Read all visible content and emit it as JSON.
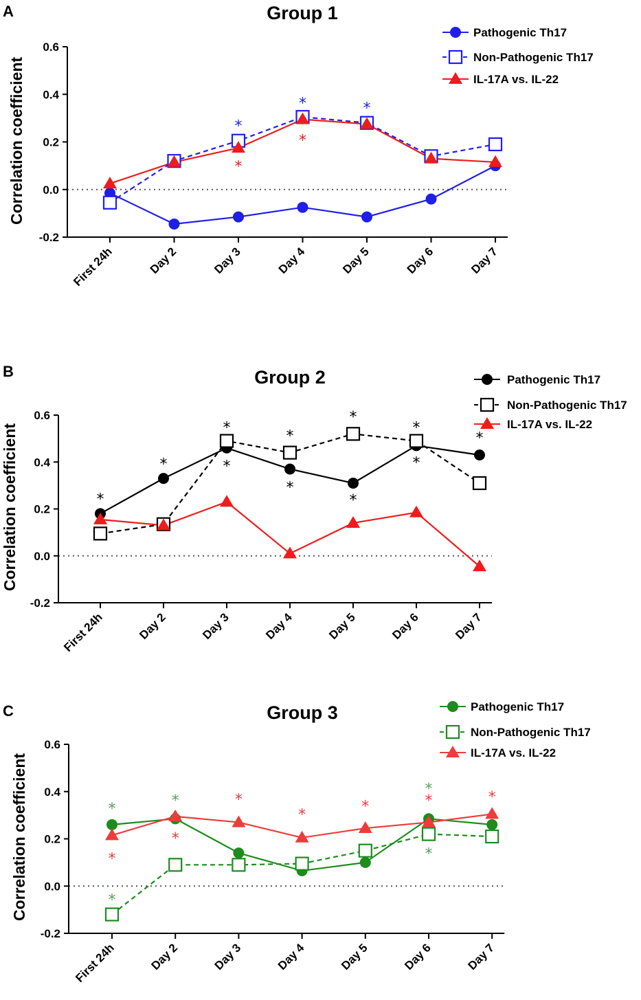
{
  "chart_data": [
    {
      "panel": "A",
      "type": "line",
      "title": "Group 1",
      "xlabel": "",
      "ylabel": "Correlation coefficient",
      "ylim": [
        -0.2,
        0.6
      ],
      "yticks": [
        "-0.2",
        "0.0",
        "0.2",
        "0.4",
        "0.6"
      ],
      "categories": [
        "First 24h",
        "Day 2",
        "Day 3",
        "Day 4",
        "Day 5",
        "Day 6",
        "Day 7"
      ],
      "reference_line": 0.0,
      "series": [
        {
          "name": "Pathogenic Th17",
          "color": "#1f1fe8",
          "marker": "circle-filled",
          "dash": false,
          "values": [
            -0.015,
            -0.145,
            -0.115,
            -0.075,
            -0.115,
            -0.04,
            0.1
          ]
        },
        {
          "name": "Non-Pathogenic Th17",
          "color": "#1f1fe8",
          "marker": "square-open",
          "dash": true,
          "values": [
            -0.055,
            0.12,
            0.205,
            0.305,
            0.28,
            0.14,
            0.19
          ]
        },
        {
          "name": "IL-17A vs. IL-22",
          "color": "#ee1c1c",
          "marker": "triangle-filled",
          "dash": false,
          "values": [
            0.025,
            0.115,
            0.175,
            0.295,
            0.275,
            0.13,
            0.115
          ]
        }
      ],
      "annotations": [
        {
          "text": "*",
          "category": "Day 3",
          "y": 0.275,
          "color": "#1f1fe8"
        },
        {
          "text": "*",
          "category": "Day 3",
          "y": 0.105,
          "color": "#ee1c1c"
        },
        {
          "text": "*",
          "category": "Day 4",
          "y": 0.37,
          "color": "#1f1fe8"
        },
        {
          "text": "*",
          "category": "Day 4",
          "y": 0.215,
          "color": "#ee1c1c"
        },
        {
          "text": "*",
          "category": "Day 5",
          "y": 0.35,
          "color": "#1f1fe8"
        }
      ]
    },
    {
      "panel": "B",
      "type": "line",
      "title": "Group 2",
      "xlabel": "",
      "ylabel": "Correlation coefficient",
      "ylim": [
        -0.2,
        0.6
      ],
      "yticks": [
        "-0.2",
        "0.0",
        "0.2",
        "0.4",
        "0.6"
      ],
      "categories": [
        "First 24h",
        "Day 2",
        "Day 3",
        "Day 4",
        "Day 5",
        "Day 6",
        "Day 7"
      ],
      "reference_line": 0.0,
      "series": [
        {
          "name": "Pathogenic Th17",
          "color": "#000000",
          "marker": "circle-filled",
          "dash": false,
          "values": [
            0.18,
            0.33,
            0.46,
            0.37,
            0.31,
            0.47,
            0.43
          ]
        },
        {
          "name": "Non-Pathogenic Th17",
          "color": "#000000",
          "marker": "square-open",
          "dash": true,
          "values": [
            0.095,
            0.135,
            0.49,
            0.44,
            0.52,
            0.49,
            0.31
          ]
        },
        {
          "name": "IL-17A vs. IL-22",
          "color": "#ee1c1c",
          "marker": "triangle-filled",
          "dash": false,
          "values": [
            0.155,
            0.13,
            0.23,
            0.01,
            0.14,
            0.185,
            -0.045
          ]
        }
      ],
      "annotations": [
        {
          "text": "*",
          "category": "First 24h",
          "y": 0.25,
          "color": "#000000"
        },
        {
          "text": "*",
          "category": "Day 2",
          "y": 0.4,
          "color": "#000000"
        },
        {
          "text": "*",
          "category": "Day 3",
          "y": 0.555,
          "color": "#000000"
        },
        {
          "text": "*",
          "category": "Day 3",
          "y": 0.39,
          "color": "#000000"
        },
        {
          "text": "*",
          "category": "Day 4",
          "y": 0.52,
          "color": "#000000"
        },
        {
          "text": "*",
          "category": "Day 4",
          "y": 0.3,
          "color": "#000000"
        },
        {
          "text": "*",
          "category": "Day 5",
          "y": 0.6,
          "color": "#000000"
        },
        {
          "text": "*",
          "category": "Day 5",
          "y": 0.245,
          "color": "#000000"
        },
        {
          "text": "*",
          "category": "Day 6",
          "y": 0.555,
          "color": "#000000"
        },
        {
          "text": "*",
          "category": "Day 6",
          "y": 0.405,
          "color": "#000000"
        },
        {
          "text": "*",
          "category": "Day 7",
          "y": 0.51,
          "color": "#000000"
        }
      ]
    },
    {
      "panel": "C",
      "type": "line",
      "title": "Group 3",
      "xlabel": "",
      "ylabel": "Correlation coefficient",
      "ylim": [
        -0.2,
        0.6
      ],
      "yticks": [
        "-0.2",
        "0.0",
        "0.2",
        "0.4",
        "0.6"
      ],
      "categories": [
        "First 24h",
        "Day 2",
        "Day 3",
        "Day 4",
        "Day 5",
        "Day 6",
        "Day 7"
      ],
      "reference_line": 0.0,
      "series": [
        {
          "name": "Pathogenic Th17",
          "color": "#1c8c1c",
          "marker": "circle-filled",
          "dash": false,
          "values": [
            0.26,
            0.285,
            0.14,
            0.065,
            0.1,
            0.285,
            0.26
          ]
        },
        {
          "name": "Non-Pathogenic Th17",
          "color": "#1c8c1c",
          "marker": "square-open",
          "dash": true,
          "values": [
            -0.12,
            0.09,
            0.09,
            0.095,
            0.15,
            0.22,
            0.21
          ]
        },
        {
          "name": "IL-17A vs. IL-22",
          "color": "#ee3b3b",
          "marker": "triangle-filled",
          "dash": false,
          "values": [
            0.215,
            0.295,
            0.27,
            0.205,
            0.245,
            0.27,
            0.305
          ]
        }
      ],
      "annotations": [
        {
          "text": "*",
          "category": "First 24h",
          "y": 0.335,
          "color": "#5aa05a"
        },
        {
          "text": "*",
          "category": "First 24h",
          "y": 0.125,
          "color": "#ee3b3b"
        },
        {
          "text": "*",
          "category": "First 24h",
          "y": -0.05,
          "color": "#5aa05a"
        },
        {
          "text": "*",
          "category": "Day 2",
          "y": 0.37,
          "color": "#5aa05a"
        },
        {
          "text": "*",
          "category": "Day 2",
          "y": 0.21,
          "color": "#ee3b3b"
        },
        {
          "text": "*",
          "category": "Day 3",
          "y": 0.375,
          "color": "#ee3b3b"
        },
        {
          "text": "*",
          "category": "Day 4",
          "y": 0.31,
          "color": "#ee3b3b"
        },
        {
          "text": "*",
          "category": "Day 5",
          "y": 0.345,
          "color": "#ee3b3b"
        },
        {
          "text": "*",
          "category": "Day 6",
          "y": 0.42,
          "color": "#5aa05a"
        },
        {
          "text": "*",
          "category": "Day 6",
          "y": 0.37,
          "color": "#ee3b3b"
        },
        {
          "text": "*",
          "category": "Day 6",
          "y": 0.145,
          "color": "#5aa05a"
        },
        {
          "text": "*",
          "category": "Day 7",
          "y": 0.385,
          "color": "#ee3b3b"
        }
      ]
    }
  ]
}
